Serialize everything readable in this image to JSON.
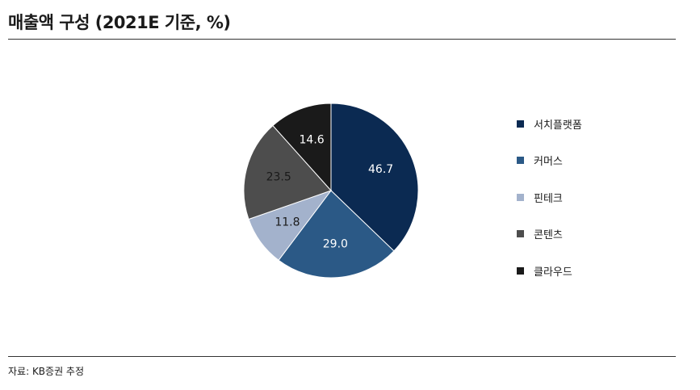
{
  "header": {
    "title": "매출액 구성 (2021E 기준, %)"
  },
  "footer": {
    "source": "자료: KB증권 추정"
  },
  "chart_data": {
    "type": "pie",
    "title": "매출액 구성 (2021E 기준, %)",
    "legend_position": "right",
    "slices": [
      {
        "name": "서치플랫폼",
        "value": 46.7,
        "label": "46.7",
        "color": "#0b2a52",
        "label_color": "#ffffff"
      },
      {
        "name": "커머스",
        "value": 29.0,
        "label": "29.0",
        "color": "#2b5986",
        "label_color": "#ffffff"
      },
      {
        "name": "핀테크",
        "value": 11.8,
        "label": "11.8",
        "color": "#a3b2cc",
        "label_color": "#1a1a1a"
      },
      {
        "name": "콘텐츠",
        "value": 23.5,
        "label": "23.5",
        "color": "#4d4d4d",
        "label_color": "#1a1a1a"
      },
      {
        "name": "클라우드",
        "value": 14.6,
        "label": "14.6",
        "color": "#1a1a1a",
        "label_color": "#ffffff"
      }
    ]
  }
}
